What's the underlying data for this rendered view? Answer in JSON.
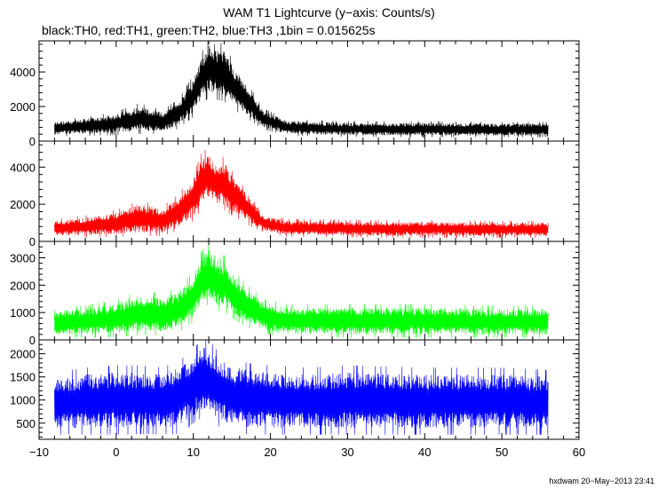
{
  "title": "WAM T1 Lightcurve (y−axis: Counts/s)",
  "subtitle": "black:TH0, red:TH1, green:TH2, blue:TH3 ,1bin = 0.015625s",
  "footer": "hxdwam 20−May−2013 23:41",
  "chart_data": {
    "type": "line",
    "title": "WAM T1 Lightcurve (y−axis: Counts/s)",
    "xlabel": "",
    "ylabel": "Counts/s",
    "xlim": [
      -10,
      60
    ],
    "x_ticks": [
      -10,
      0,
      10,
      20,
      30,
      40,
      50,
      60
    ],
    "x_tick_labels": [
      "−10",
      "0",
      "10",
      "20",
      "30",
      "40",
      "50",
      "60"
    ],
    "x_range_data": [
      -8,
      56
    ],
    "bin_size_s": 0.015625,
    "panels": [
      {
        "name": "TH0",
        "color": "#000000",
        "ylim": [
          0,
          5800
        ],
        "y_ticks": [
          0,
          2000,
          4000
        ],
        "profile": {
          "x": [
            -8,
            -4,
            0,
            3,
            6,
            8,
            10,
            11,
            12,
            13,
            14,
            15,
            17,
            19,
            22,
            26,
            30,
            40,
            50,
            56
          ],
          "lower": [
            280,
            300,
            350,
            420,
            420,
            700,
            1400,
            2100,
            2500,
            2400,
            2300,
            1900,
            1300,
            700,
            320,
            280,
            250,
            230,
            230,
            230
          ],
          "upper": [
            1200,
            1400,
            1700,
            2200,
            1800,
            2400,
            3800,
            5100,
            5900,
            5500,
            5800,
            4700,
            3400,
            1900,
            1300,
            1200,
            1150,
            1150,
            1100,
            1100
          ]
        }
      },
      {
        "name": "TH1",
        "color": "#ff0000",
        "ylim": [
          0,
          5400
        ],
        "y_ticks": [
          0,
          2000,
          4000
        ],
        "profile": {
          "x": [
            -8,
            -4,
            0,
            3,
            6,
            8,
            10,
            11,
            12,
            13,
            14,
            15,
            17,
            19,
            22,
            26,
            30,
            40,
            50,
            56
          ],
          "lower": [
            200,
            220,
            250,
            300,
            300,
            550,
            1100,
            1700,
            2000,
            1800,
            1700,
            1400,
            900,
            500,
            250,
            230,
            220,
            200,
            200,
            200
          ],
          "upper": [
            1200,
            1400,
            1700,
            2200,
            1900,
            2500,
            3600,
            4700,
            5100,
            4300,
            4600,
            3800,
            2700,
            1500,
            1200,
            1200,
            1150,
            1150,
            1100,
            1100
          ]
        }
      },
      {
        "name": "TH2",
        "color": "#00ff00",
        "ylim": [
          0,
          3600
        ],
        "y_ticks": [
          0,
          1000,
          2000,
          3000
        ],
        "profile": {
          "x": [
            -8,
            -4,
            0,
            3,
            6,
            8,
            10,
            11,
            12,
            13,
            14,
            15,
            17,
            19,
            22,
            26,
            30,
            40,
            50,
            56
          ],
          "lower": [
            60,
            80,
            100,
            150,
            150,
            250,
            650,
            1100,
            1300,
            1100,
            1000,
            800,
            450,
            250,
            100,
            90,
            80,
            80,
            80,
            80
          ],
          "upper": [
            1200,
            1250,
            1450,
            1800,
            1700,
            1900,
            2500,
            3200,
            3600,
            2900,
            3100,
            2600,
            2000,
            1500,
            1300,
            1300,
            1300,
            1300,
            1250,
            1250
          ]
        }
      },
      {
        "name": "TH3",
        "color": "#0000ff",
        "ylim": [
          150,
          2300
        ],
        "y_ticks": [
          500,
          1000,
          1500,
          2000
        ],
        "profile": {
          "x": [
            -8,
            -4,
            0,
            3,
            6,
            8,
            9,
            10,
            11,
            12,
            13,
            15,
            17,
            20,
            25,
            30,
            40,
            50,
            56
          ],
          "lower": [
            250,
            250,
            250,
            260,
            260,
            260,
            350,
            500,
            600,
            600,
            450,
            280,
            260,
            250,
            250,
            250,
            250,
            250,
            250
          ],
          "upper": [
            1600,
            1700,
            1750,
            1750,
            1700,
            1850,
            1950,
            2100,
            2300,
            2300,
            2100,
            1900,
            1800,
            1750,
            1700,
            1750,
            1700,
            1700,
            1650
          ]
        }
      }
    ]
  }
}
